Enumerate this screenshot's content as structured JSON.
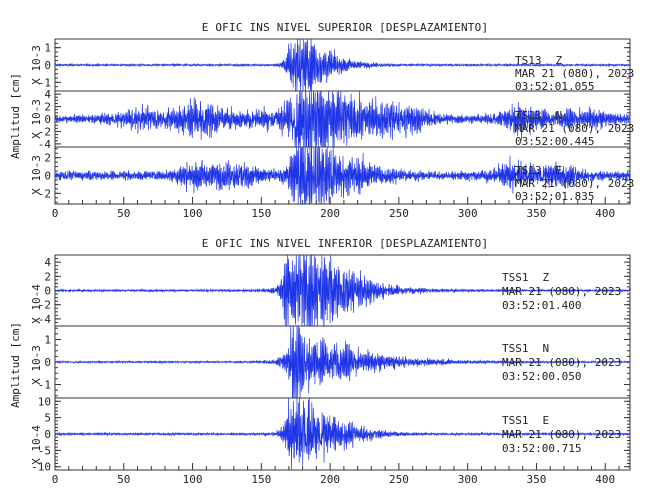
{
  "colors": {
    "trace": "#1f35e8",
    "axes": "#333333",
    "text": "#222222"
  },
  "charts": [
    {
      "title": "E OFIC INS NIVEL SUPERIOR [DESPLAZAMIENTO]",
      "ylabel": "Amplitud [cm]",
      "xticks": [
        "0",
        "50",
        "100",
        "150",
        "200",
        "250",
        "300",
        "350",
        "400"
      ],
      "channels": [
        {
          "scale": "X 10-3",
          "ylim": [
            -1.5,
            1.5
          ],
          "yticks": [
            -1,
            0,
            1
          ],
          "yticklabels": [
            "-1",
            "0",
            "1"
          ],
          "station": "TS13",
          "component": "Z",
          "date": "MAR 21 (080), 2023",
          "time": "03:52:01.055"
        },
        {
          "scale": "X 10-3",
          "ylim": [
            -4.5,
            4.5
          ],
          "yticks": [
            -4,
            -2,
            0,
            2,
            4
          ],
          "yticklabels": [
            "-4",
            "-2",
            "0",
            "2",
            "4"
          ],
          "station": "TS13",
          "component": "N",
          "date": "MAR 21 (080), 2023",
          "time": "03:52:00.445"
        },
        {
          "scale": "X 10-3",
          "ylim": [
            -3.2,
            3.2
          ],
          "yticks": [
            -2,
            0,
            2
          ],
          "yticklabels": [
            "-2",
            "0",
            "2"
          ],
          "station": "TS13",
          "component": "E",
          "date": "MAR 21 (080), 2023",
          "time": "03:52:01.835"
        }
      ]
    },
    {
      "title": "E OFIC INS NIVEL INFERIOR [DESPLAZAMIENTO]",
      "ylabel": "Amplitud [cm]",
      "xticks": [
        "0",
        "50",
        "100",
        "150",
        "200",
        "250",
        "300",
        "350",
        "400"
      ],
      "channels": [
        {
          "scale": "X 10-4",
          "ylim": [
            -5,
            5
          ],
          "yticks": [
            -4,
            -2,
            0,
            2,
            4
          ],
          "yticklabels": [
            "-4",
            "-2",
            "0",
            "2",
            "4"
          ],
          "station": "TSS1",
          "component": "Z",
          "date": "MAR 21 (080), 2023",
          "time": "03:52:01.400"
        },
        {
          "scale": "X 10-3",
          "ylim": [
            -1.6,
            1.6
          ],
          "yticks": [
            -1,
            0,
            1
          ],
          "yticklabels": [
            "-1",
            "0",
            "1"
          ],
          "station": "TSS1",
          "component": "N",
          "date": "MAR 21 (080), 2023",
          "time": "03:52:00.050"
        },
        {
          "scale": "X 10-4",
          "ylim": [
            -11,
            11
          ],
          "yticks": [
            -10,
            -5,
            0,
            5,
            10
          ],
          "yticklabels": [
            "-10",
            "-5",
            "0",
            "5",
            "10"
          ],
          "station": "TSS1",
          "component": "E",
          "date": "MAR 21 (080), 2023",
          "time": "03:52:00.715"
        }
      ]
    }
  ],
  "chart_data": [
    {
      "type": "line",
      "title": "E OFIC INS NIVEL SUPERIOR [DESPLAZAMIENTO]",
      "xlabel": "",
      "ylabel": "Amplitud [cm]",
      "xlim": [
        0,
        418
      ],
      "series": [
        {
          "name": "TS13 Z",
          "scale": "X 10-3",
          "ylim": [
            -1.5,
            1.5
          ],
          "background": 0.06,
          "bursts": [
            [
              176,
              5,
              1.4,
              0.4
            ],
            [
              183,
              8,
              0.6,
              0.5
            ]
          ]
        },
        {
          "name": "TS13 N",
          "scale": "X 10-3",
          "ylim": [
            -4.5,
            4.5
          ],
          "background": 0.6,
          "bursts": [
            [
              60,
              12,
              1.3,
              0
            ],
            [
              104,
              14,
              2.6,
              0
            ],
            [
              145,
              12,
              1.0,
              0
            ],
            [
              178,
              5,
              4.2,
              0.5
            ],
            [
              186,
              14,
              2.6,
              0.5
            ],
            [
              205,
              25,
              1.2,
              0
            ],
            [
              255,
              12,
              1.3,
              0
            ],
            [
              340,
              12,
              1.7,
              0
            ],
            [
              385,
              15,
              1.0,
              0
            ]
          ]
        },
        {
          "name": "TS13 E",
          "scale": "X 10-3",
          "ylim": [
            -3.2,
            3.2
          ],
          "background": 0.5,
          "bursts": [
            [
              105,
              12,
              1.1,
              0
            ],
            [
              135,
              12,
              1.0,
              0
            ],
            [
              177,
              4,
              3.0,
              0.5
            ],
            [
              184,
              9,
              1.8,
              0.5
            ],
            [
              215,
              20,
              0.7,
              0
            ],
            [
              335,
              12,
              1.1,
              0
            ],
            [
              368,
              10,
              0.9,
              0
            ]
          ]
        }
      ]
    },
    {
      "type": "line",
      "title": "E OFIC INS NIVEL INFERIOR [DESPLAZAMIENTO]",
      "xlabel": "",
      "ylabel": "Amplitud [cm]",
      "xlim": [
        0,
        418
      ],
      "series": [
        {
          "name": "TSS1 Z",
          "scale": "X 10-4",
          "ylim": [
            -5,
            5
          ],
          "background": 0.15,
          "bursts": [
            [
              168,
              1.5,
              3.5,
              0
            ],
            [
              176,
              6,
              4.6,
              0.5
            ],
            [
              186,
              12,
              2.2,
              0.5
            ],
            [
              205,
              20,
              0.8,
              0
            ]
          ]
        },
        {
          "name": "TSS1 N",
          "scale": "X 10-3",
          "ylim": [
            -1.6,
            1.6
          ],
          "background": 0.04,
          "bursts": [
            [
              174,
              2,
              1.5,
              0.3
            ],
            [
              178,
              8,
              0.8,
              0.6
            ],
            [
              195,
              18,
              0.3,
              0.5
            ]
          ]
        },
        {
          "name": "TSS1 E",
          "scale": "X 10-4",
          "ylim": [
            -11,
            11
          ],
          "background": 0.35,
          "bursts": [
            [
              174,
              4,
              9.0,
              0.4
            ],
            [
              182,
              10,
              4.0,
              0.5
            ],
            [
              200,
              18,
              1.5,
              0
            ]
          ]
        }
      ]
    }
  ]
}
